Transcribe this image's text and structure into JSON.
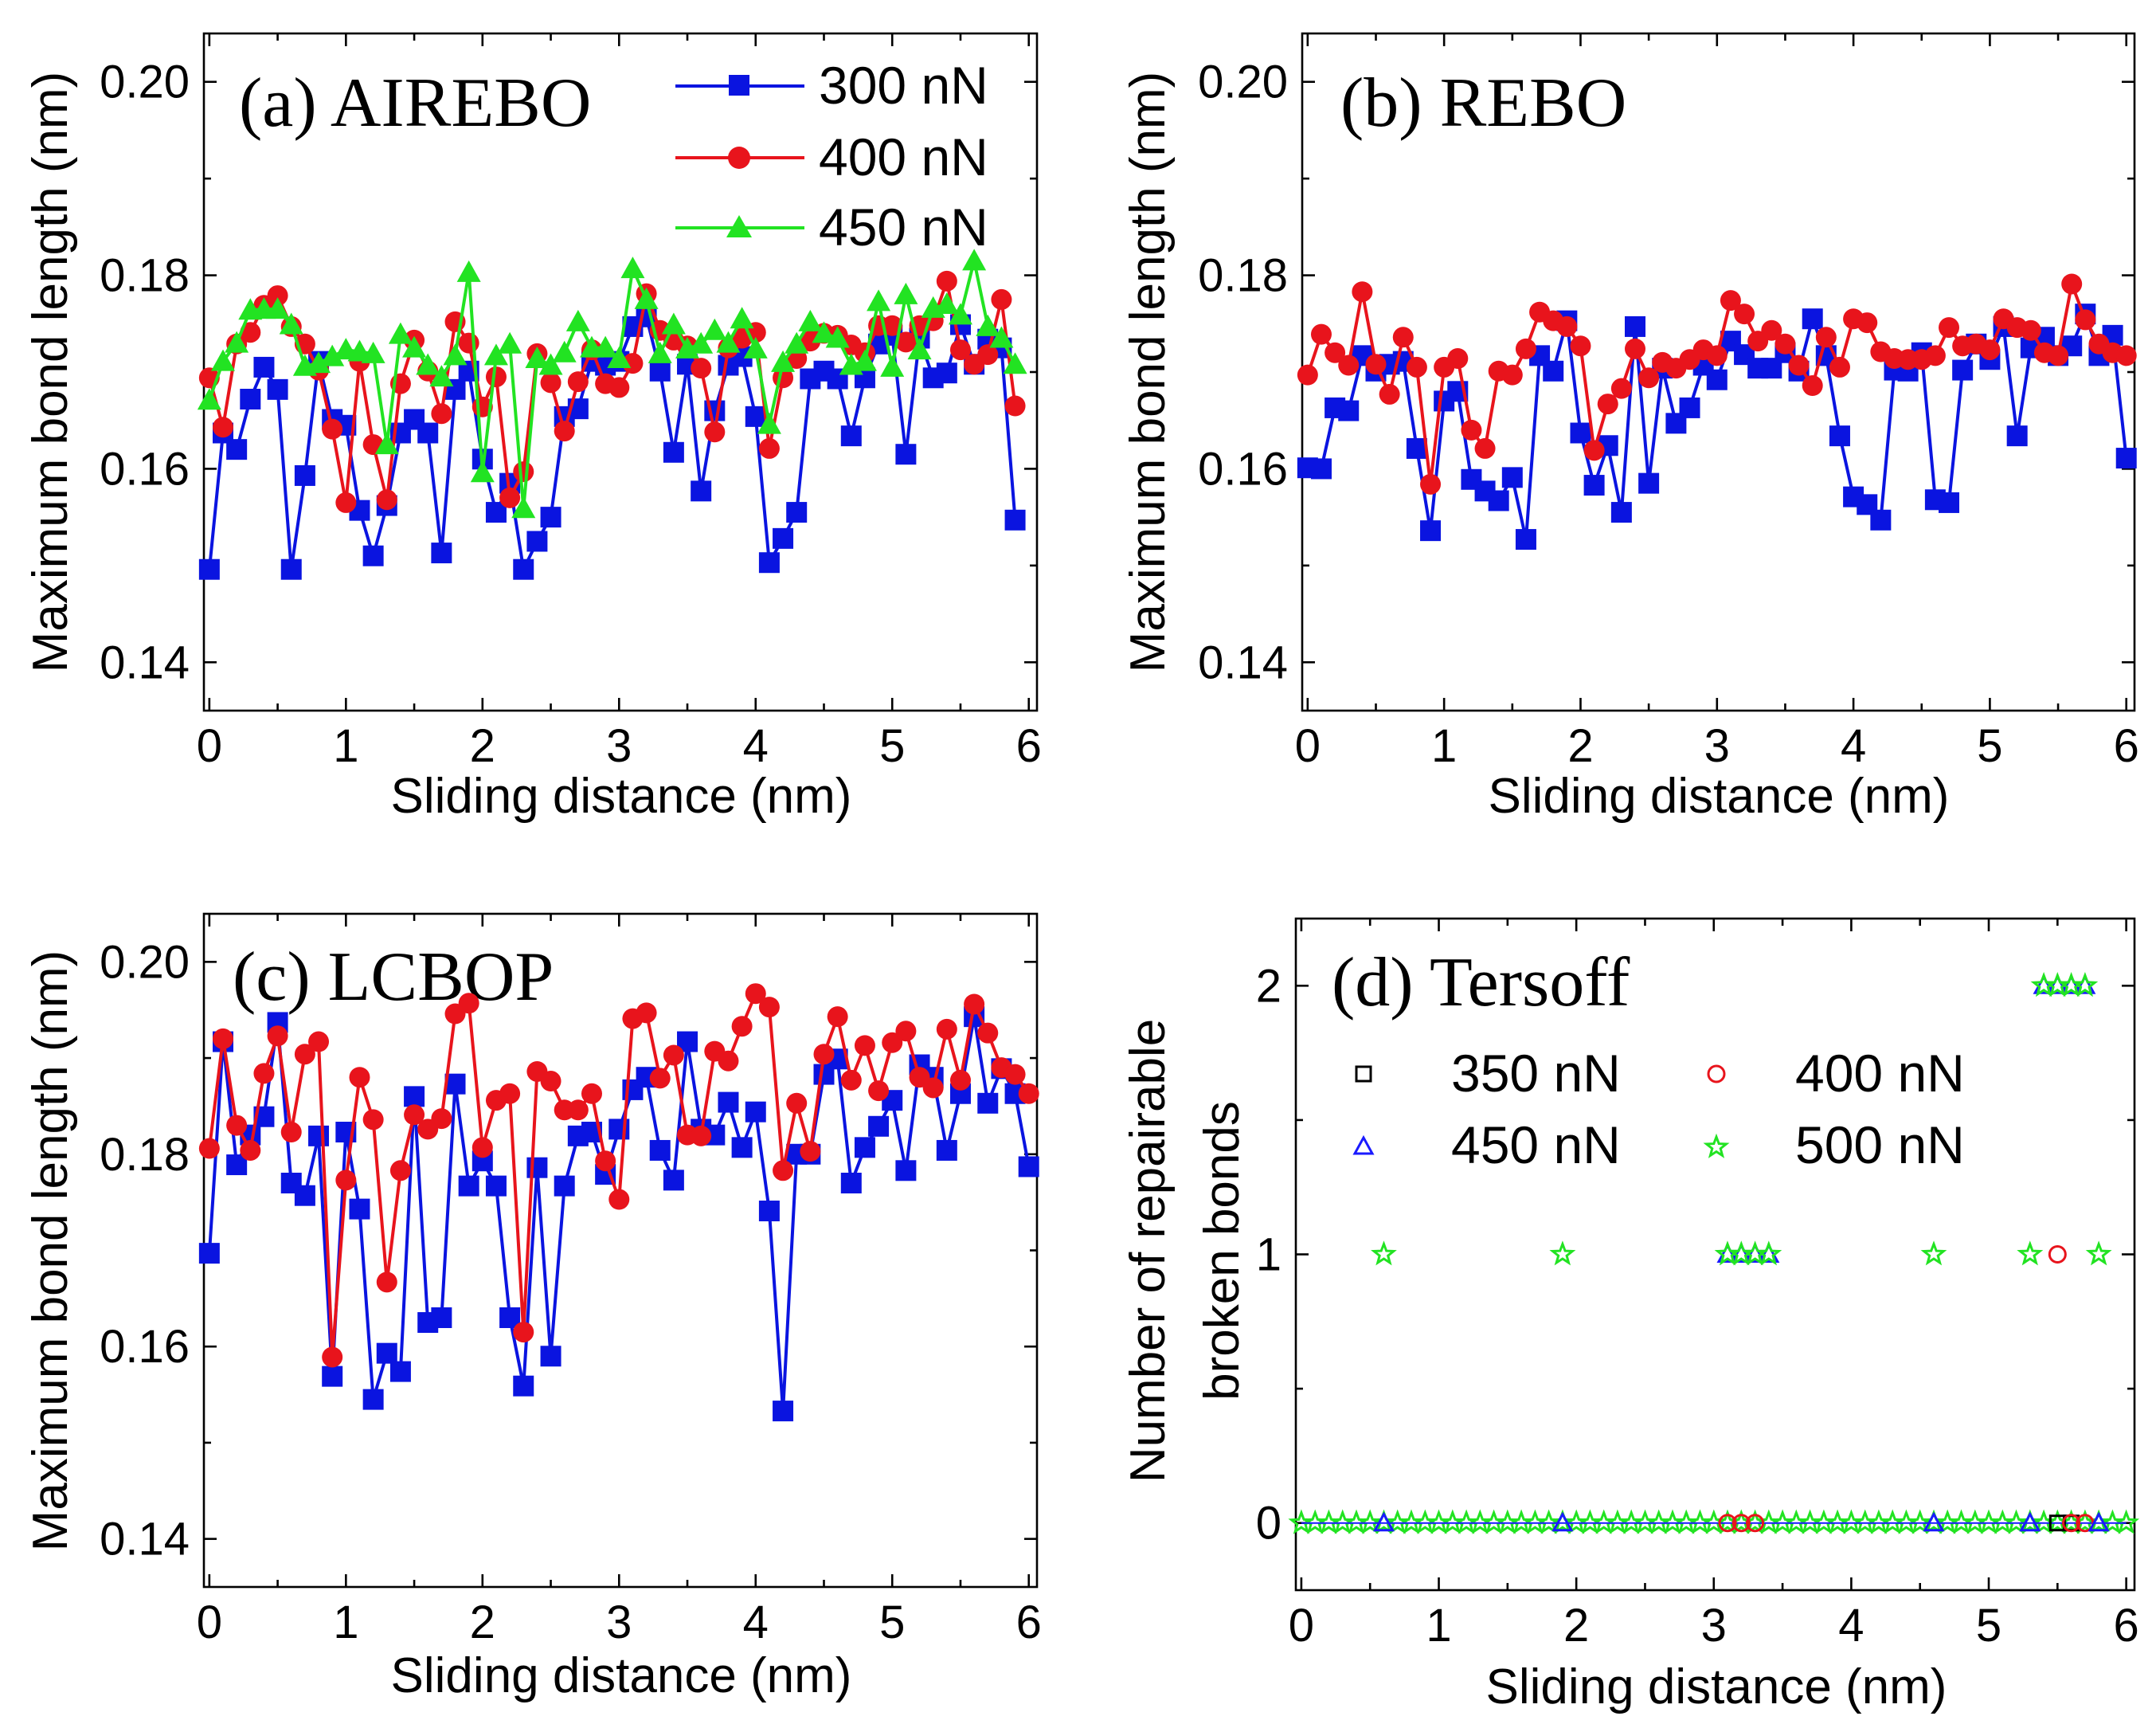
{
  "colors": {
    "300 nN": "#0a14e0",
    "400 nN": "#e8141c",
    "450 nN": "#22e322",
    "350 nN": "#000000",
    "450 nN tersoff": "#1a1aff",
    "500 nN": "#22e322",
    "400 nN tersoff": "#e8141c"
  },
  "chart_data": [
    {
      "type": "line",
      "title": "(a) AIREBO",
      "xlabel": "Sliding distance (nm)",
      "ylabel": "Maximum bond length (nm)",
      "xlim": [
        -0.04,
        6.06
      ],
      "ylim": [
        0.135,
        0.205
      ],
      "xticks": [
        "0",
        "1",
        "2",
        "3",
        "4",
        "5",
        "6"
      ],
      "yticks": [
        "0.14",
        "0.16",
        "0.18",
        "0.20"
      ],
      "legend": "top-right",
      "series": [
        {
          "name": "300 nN",
          "marker": "square",
          "values": [
            0.1496,
            0.1637,
            0.162,
            0.1672,
            0.1705,
            0.1682,
            0.1496,
            0.1593,
            0.1711,
            0.1651,
            0.1645,
            0.1557,
            0.151,
            0.1562,
            0.1637,
            0.1651,
            0.1637,
            0.1513,
            0.1682,
            0.1701,
            0.161,
            0.1555,
            0.1585,
            0.1496,
            0.1525,
            0.155,
            0.1654,
            0.1662,
            0.1711,
            0.1707,
            0.1711,
            0.1747,
            0.1757,
            0.1701,
            0.1617,
            0.1708,
            0.1577,
            0.166,
            0.1707,
            0.1716,
            0.1654,
            0.1503,
            0.1528,
            0.1555,
            0.1693,
            0.1701,
            0.1693,
            0.1634,
            0.1694,
            0.1729,
            0.1738,
            0.1615,
            0.1735,
            0.1694,
            0.1699,
            0.1749,
            0.1708,
            0.1734,
            0.1725,
            0.1547
          ]
        },
        {
          "name": "400 nN",
          "marker": "circle",
          "values": [
            0.1694,
            0.1643,
            0.1729,
            0.1741,
            0.1769,
            0.1779,
            0.1747,
            0.1729,
            0.1702,
            0.1641,
            0.1565,
            0.1711,
            0.1625,
            0.1568,
            0.1688,
            0.1733,
            0.1701,
            0.1657,
            0.1752,
            0.173,
            0.1664,
            0.1695,
            0.157,
            0.1597,
            0.1719,
            0.1689,
            0.1639,
            0.169,
            0.1723,
            0.1688,
            0.1684,
            0.1709,
            0.1781,
            0.1743,
            0.1733,
            0.1727,
            0.1704,
            0.1638,
            0.1725,
            0.1735,
            0.1741,
            0.1621,
            0.1694,
            0.1714,
            0.1732,
            0.174,
            0.1738,
            0.1728,
            0.172,
            0.1748,
            0.1748,
            0.1731,
            0.1748,
            0.1753,
            0.1794,
            0.1723,
            0.1708,
            0.1718,
            0.1775,
            0.1665
          ]
        },
        {
          "name": "450 nN",
          "marker": "triangle",
          "values": [
            0.1671,
            0.1711,
            0.173,
            0.1764,
            0.1765,
            0.1765,
            0.1749,
            0.1706,
            0.1709,
            0.1716,
            0.1723,
            0.1721,
            0.1719,
            0.1625,
            0.1739,
            0.1725,
            0.1707,
            0.1695,
            0.1717,
            0.1803,
            0.1596,
            0.1717,
            0.1729,
            0.1559,
            0.1714,
            0.1707,
            0.172,
            0.1752,
            0.1725,
            0.1725,
            0.1714,
            0.1807,
            0.1775,
            0.1719,
            0.1749,
            0.1724,
            0.1729,
            0.1743,
            0.173,
            0.1755,
            0.1724,
            0.1646,
            0.171,
            0.1729,
            0.1752,
            0.174,
            0.1735,
            0.1707,
            0.1711,
            0.1773,
            0.1705,
            0.178,
            0.1723,
            0.1766,
            0.177,
            0.1759,
            0.1815,
            0.1747,
            0.1735,
            0.1708
          ]
        }
      ]
    },
    {
      "type": "line",
      "title": "(b) REBO",
      "xlabel": "Sliding distance (nm)",
      "ylabel": "Maximum bond length (nm)",
      "xlim": [
        -0.04,
        6.06
      ],
      "ylim": [
        0.135,
        0.205
      ],
      "xticks": [
        "0",
        "1",
        "2",
        "3",
        "4",
        "5",
        "6"
      ],
      "yticks": [
        "0.14",
        "0.16",
        "0.18",
        "0.20"
      ],
      "series": [
        {
          "name": "300 nN",
          "marker": "square",
          "values": [
            0.1601,
            0.16,
            0.1663,
            0.166,
            0.1717,
            0.1701,
            0.1708,
            0.1711,
            0.1621,
            0.1536,
            0.167,
            0.168,
            0.1589,
            0.1577,
            0.1567,
            0.1591,
            0.1527,
            0.1717,
            0.1701,
            0.1753,
            0.1637,
            0.1583,
            0.1624,
            0.1555,
            0.1747,
            0.1585,
            0.1704,
            0.1647,
            0.1663,
            0.1707,
            0.1692,
            0.1732,
            0.1718,
            0.1704,
            0.1704,
            0.172,
            0.1701,
            0.1755,
            0.1717,
            0.1634,
            0.1571,
            0.1563,
            0.1547,
            0.1702,
            0.1701,
            0.172,
            0.1568,
            0.1565,
            0.1702,
            0.1729,
            0.1713,
            0.1747,
            0.1634,
            0.1725,
            0.1736,
            0.1717,
            0.1727,
            0.176,
            0.1717,
            0.1738,
            0.1611
          ]
        },
        {
          "name": "400 nN",
          "marker": "circle",
          "values": [
            0.1697,
            0.1739,
            0.172,
            0.1707,
            0.1783,
            0.1708,
            0.1677,
            0.1736,
            0.1705,
            0.1584,
            0.1705,
            0.1714,
            0.164,
            0.1621,
            0.1701,
            0.1697,
            0.1724,
            0.1762,
            0.1753,
            0.1747,
            0.1727,
            0.1619,
            0.1667,
            0.1683,
            0.1724,
            0.1694,
            0.171,
            0.1704,
            0.1713,
            0.1723,
            0.1717,
            0.1774,
            0.176,
            0.1732,
            0.1743,
            0.1729,
            0.1707,
            0.1686,
            0.1736,
            0.1705,
            0.1755,
            0.1751,
            0.1721,
            0.1714,
            0.1713,
            0.1713,
            0.1717,
            0.1746,
            0.1727,
            0.1729,
            0.1723,
            0.1755,
            0.1746,
            0.1743,
            0.172,
            0.1717,
            0.1791,
            0.1754,
            0.1729,
            0.172,
            0.1717
          ]
        }
      ]
    },
    {
      "type": "line",
      "title": "(c) LCBOP",
      "xlabel": "Sliding distance (nm)",
      "ylabel": "Maximum bond length (nm)",
      "xlim": [
        -0.04,
        6.06
      ],
      "ylim": [
        0.135,
        0.205
      ],
      "xticks": [
        "0",
        "1",
        "2",
        "3",
        "4",
        "5",
        "6"
      ],
      "yticks": [
        "0.14",
        "0.16",
        "0.18",
        "0.20"
      ],
      "series": [
        {
          "name": "300 nN",
          "marker": "square",
          "values": [
            0.1697,
            0.1917,
            0.1789,
            0.182,
            0.1839,
            0.1937,
            0.177,
            0.1757,
            0.1819,
            0.1569,
            0.1823,
            0.1743,
            0.1545,
            0.1593,
            0.1574,
            0.186,
            0.1625,
            0.163,
            0.1873,
            0.1767,
            0.1793,
            0.1767,
            0.163,
            0.1559,
            0.1786,
            0.159,
            0.1767,
            0.1819,
            0.1823,
            0.1779,
            0.1826,
            0.1867,
            0.188,
            0.1804,
            0.1773,
            0.1917,
            0.1826,
            0.182,
            0.1854,
            0.1807,
            0.1844,
            0.1741,
            0.1533,
            0.18,
            0.18,
            0.1883,
            0.1899,
            0.177,
            0.1807,
            0.1829,
            0.1856,
            0.1783,
            0.1893,
            0.188,
            0.1804,
            0.1863,
            0.1943,
            0.1853,
            0.1889,
            0.1863,
            0.1787
          ]
        },
        {
          "name": "400 nN",
          "marker": "circle",
          "values": [
            0.1806,
            0.192,
            0.183,
            0.1804,
            0.1884,
            0.1923,
            0.1823,
            0.1904,
            0.1917,
            0.1589,
            0.1773,
            0.188,
            0.1836,
            0.1667,
            0.1783,
            0.1841,
            0.1826,
            0.1837,
            0.1946,
            0.1957,
            0.1807,
            0.1856,
            0.1863,
            0.1615,
            0.1886,
            0.1876,
            0.1846,
            0.1846,
            0.1863,
            0.1793,
            0.1753,
            0.1941,
            0.1947,
            0.1879,
            0.1903,
            0.182,
            0.1819,
            0.1907,
            0.1897,
            0.1933,
            0.1967,
            0.1953,
            0.1783,
            0.1853,
            0.1803,
            0.1904,
            0.1943,
            0.1877,
            0.1913,
            0.1866,
            0.1916,
            0.1928,
            0.188,
            0.1869,
            0.193,
            0.1877,
            0.1956,
            0.1926,
            0.189,
            0.1883,
            0.1863
          ]
        }
      ]
    },
    {
      "type": "scatter",
      "title": "(d) Tersoff",
      "xlabel": "Sliding distance (nm)",
      "ylabel": "Number of repairable broken bonds",
      "xlim": [
        -0.04,
        6.06
      ],
      "ylim": [
        -0.25,
        2.25
      ],
      "xticks": [
        "0",
        "1",
        "2",
        "3",
        "4",
        "5",
        "6"
      ],
      "yticks": [
        "0",
        "1",
        "2"
      ],
      "legend": "center-left",
      "series": [
        {
          "name": "350 nN",
          "marker": "open-square",
          "note": "all points at 0",
          "x": [
            5.5,
            5.6
          ],
          "y": [
            0,
            0
          ]
        },
        {
          "name": "400 nN",
          "marker": "open-circle",
          "x": [
            3.1,
            3.2,
            3.3,
            5.5,
            5.6,
            5.7
          ],
          "y": [
            0,
            0,
            0,
            1,
            0,
            0
          ]
        },
        {
          "name": "450 nN",
          "marker": "open-triangle",
          "x": [
            0.6,
            1.9,
            3.1,
            3.2,
            3.3,
            3.4,
            4.6,
            5.3,
            5.4,
            5.5,
            5.6,
            5.7,
            5.8
          ],
          "y": [
            0,
            0,
            1,
            1,
            1,
            1,
            0,
            0,
            2,
            2,
            2,
            2,
            0
          ]
        },
        {
          "name": "500 nN",
          "marker": "star",
          "x": [
            0.6,
            1.9,
            3.1,
            3.2,
            3.3,
            3.4,
            4.6,
            5.3,
            5.4,
            5.5,
            5.6,
            5.7,
            5.8
          ],
          "y": [
            1,
            1,
            1,
            1,
            1,
            1,
            1,
            1,
            2,
            2,
            2,
            2,
            1
          ]
        }
      ]
    }
  ]
}
